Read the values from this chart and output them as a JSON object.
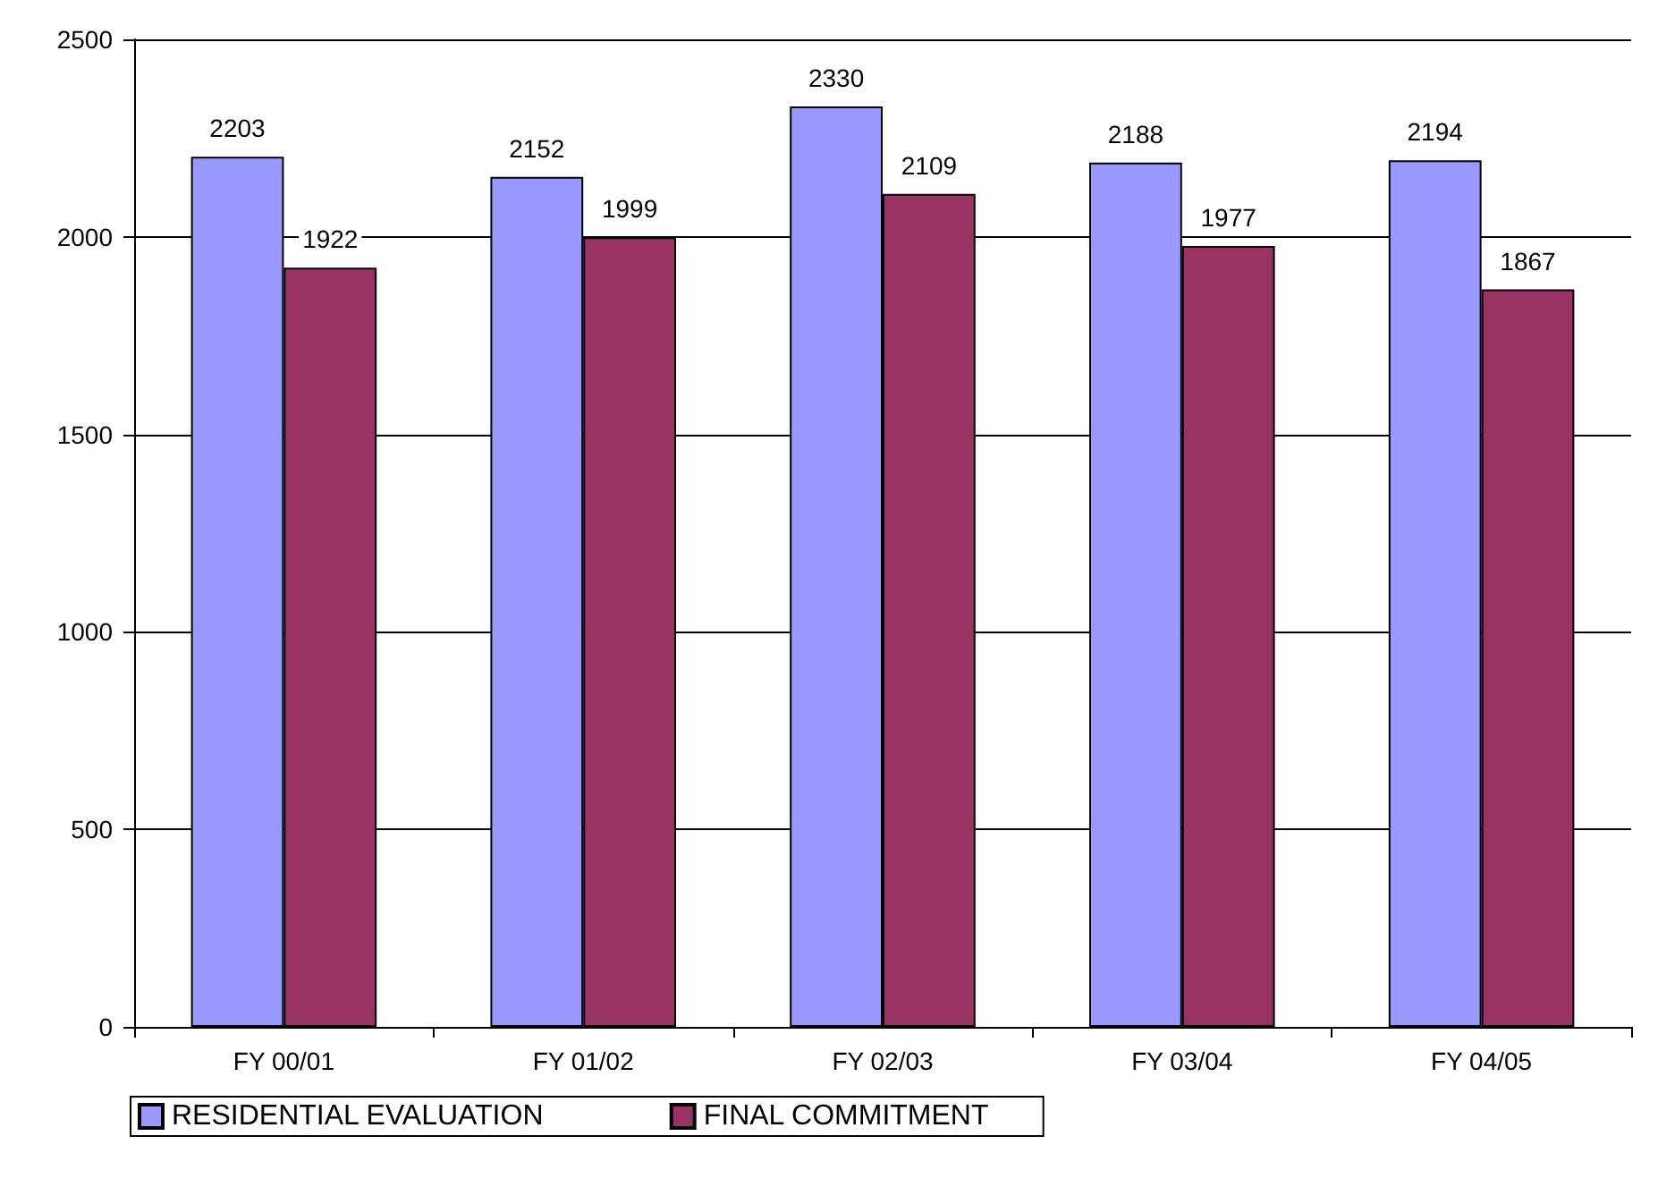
{
  "chart_data": {
    "type": "bar",
    "categories": [
      "FY 00/01",
      "FY 01/02",
      "FY 02/03",
      "FY 03/04",
      "FY 04/05"
    ],
    "series": [
      {
        "name": "RESIDENTIAL EVALUATION",
        "color": "#9999ff",
        "values": [
          2203,
          2152,
          2330,
          2188,
          2194
        ]
      },
      {
        "name": "FINAL COMMITMENT",
        "color": "#993366",
        "values": [
          1922,
          1999,
          2109,
          1977,
          1867
        ]
      }
    ],
    "ylim": [
      0,
      2500
    ],
    "yticks": [
      0,
      500,
      1000,
      1500,
      2000,
      2500
    ],
    "grid": "y",
    "legend": "bottom",
    "data_labels": true
  }
}
